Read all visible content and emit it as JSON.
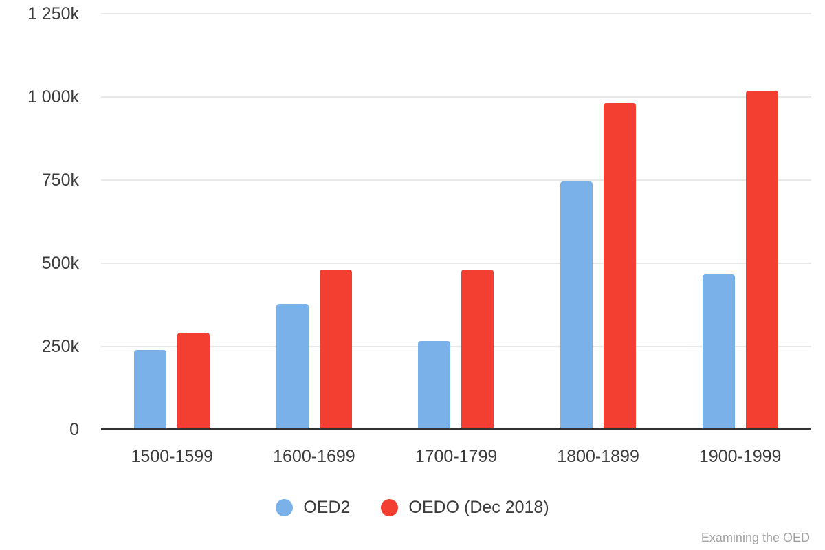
{
  "chart_data": {
    "type": "bar",
    "title": "",
    "categories": [
      "1500-1599",
      "1600-1699",
      "1700-1799",
      "1800-1899",
      "1900-1999"
    ],
    "series": [
      {
        "name": "OED2",
        "color": "#7ab1e8",
        "values": [
          240000,
          378000,
          267000,
          745000,
          467000
        ]
      },
      {
        "name": "OEDO (Dec 2018)",
        "color": "#f23f32",
        "values": [
          291000,
          482000,
          482000,
          982000,
          1019000
        ]
      }
    ],
    "xlabel": "",
    "ylabel": "",
    "ylim": [
      0,
      1250000
    ],
    "yticks": [
      0,
      250000,
      500000,
      750000,
      1000000,
      1250000
    ],
    "ytick_labels": [
      "0",
      "250k",
      "500k",
      "750k",
      "1 000k",
      "1 250k"
    ],
    "grid": true,
    "legend_position": "bottom"
  },
  "watermark": "Examining the OED"
}
